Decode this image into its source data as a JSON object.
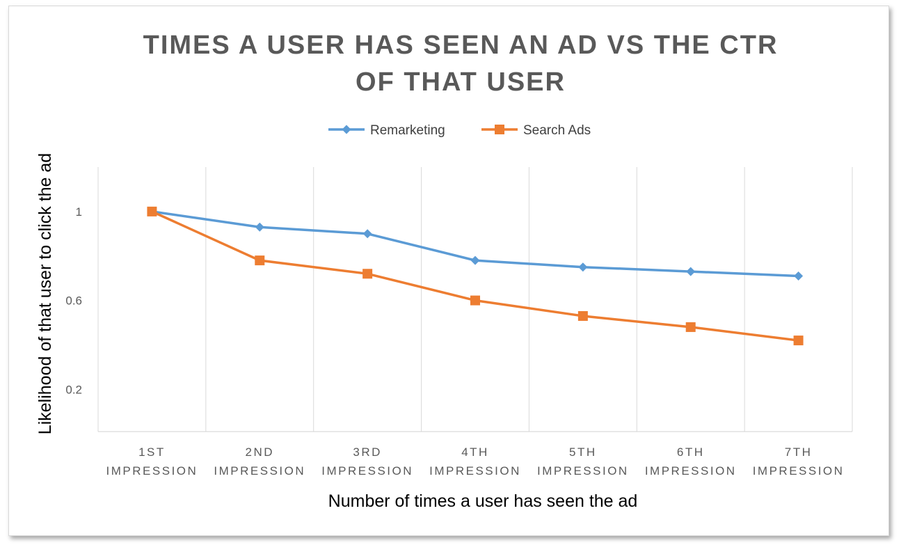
{
  "chart_data": {
    "type": "line",
    "title_lines": [
      "TIMES A USER HAS SEEN AN AD VS THE CTR",
      "OF THAT USER"
    ],
    "xlabel": "Number of times a user has seen the ad",
    "ylabel": "Likelihood of that user to click the ad",
    "categories": [
      [
        "1ST",
        "IMPRESSION"
      ],
      [
        "2ND",
        "IMPRESSION"
      ],
      [
        "3RD",
        "IMPRESSION"
      ],
      [
        "4TH",
        "IMPRESSION"
      ],
      [
        "5TH",
        "IMPRESSION"
      ],
      [
        "6TH",
        "IMPRESSION"
      ],
      [
        "7TH",
        "IMPRESSION"
      ]
    ],
    "yticks": [
      {
        "value": 0.2,
        "label": "0.2"
      },
      {
        "value": 0.6,
        "label": "0.6"
      },
      {
        "value": 1.0,
        "label": "1"
      }
    ],
    "ylim": [
      0.01,
      1.2
    ],
    "grid": "vertical",
    "legend_position": "top",
    "series": [
      {
        "name": "Remarketing",
        "color": "#5B9BD5",
        "marker": "diamond",
        "values": [
          1.0,
          0.93,
          0.9,
          0.78,
          0.75,
          0.73,
          0.71
        ]
      },
      {
        "name": "Search Ads",
        "color": "#ED7D31",
        "marker": "square",
        "values": [
          1.0,
          0.78,
          0.72,
          0.6,
          0.53,
          0.48,
          0.42
        ]
      }
    ]
  }
}
